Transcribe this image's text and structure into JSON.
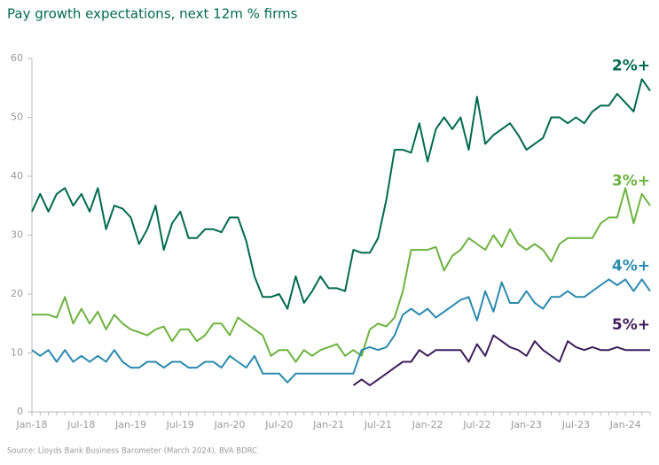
{
  "chart_data": {
    "type": "line",
    "title": "Pay growth expectations, next 12m % firms",
    "source": "Source: Lloyds Bank Business Barometer (March 2024), BVA BDRC",
    "categories": [
      "Jan-18",
      null,
      null,
      null,
      null,
      null,
      "Jul-18",
      null,
      null,
      null,
      null,
      null,
      "Jan-19",
      null,
      null,
      null,
      null,
      null,
      "Jul-19",
      null,
      null,
      null,
      null,
      null,
      "Jan-20",
      null,
      null,
      null,
      null,
      null,
      "Jul-20",
      null,
      null,
      null,
      null,
      null,
      "Jan-21",
      null,
      null,
      null,
      null,
      null,
      "Jul-21",
      null,
      null,
      null,
      null,
      null,
      "Jan-22",
      null,
      null,
      null,
      null,
      null,
      "Jul-22",
      null,
      null,
      null,
      null,
      null,
      "Jan-23",
      null,
      null,
      null,
      null,
      null,
      "Jul-23",
      null,
      null,
      null,
      null,
      null,
      "Jan-24",
      null,
      null,
      null
    ],
    "series": [
      {
        "name": "2%+",
        "color": "#006a4d",
        "values": [
          34,
          37,
          34,
          37,
          38,
          35,
          37,
          34,
          38,
          31,
          35,
          34.5,
          33,
          28.5,
          31,
          35,
          27.5,
          32,
          34,
          29.5,
          29.5,
          31,
          31,
          30.5,
          33,
          33,
          29,
          23,
          19.5,
          19.5,
          20,
          17.5,
          23,
          18.5,
          20.5,
          23,
          21,
          21,
          20.5,
          27.5,
          27,
          27,
          29.5,
          36,
          44.5,
          44.5,
          44,
          49,
          42.5,
          48,
          50,
          48,
          50,
          44.5,
          53.5,
          45.5,
          47,
          48,
          49,
          47,
          44.5,
          45.5,
          46.5,
          50,
          50,
          49,
          50,
          49,
          51,
          52,
          52,
          54,
          52.5,
          51,
          56.5,
          54.5
        ]
      },
      {
        "name": "3%+",
        "color": "#6cb33f",
        "values": [
          16.5,
          16.5,
          16.5,
          16,
          19.5,
          15,
          17.5,
          15,
          17,
          14,
          16.5,
          15,
          14,
          13.5,
          13,
          14,
          14.5,
          12,
          14,
          14,
          12,
          13,
          15,
          15,
          13,
          16,
          15,
          14,
          13,
          9.5,
          10.5,
          10.5,
          8.5,
          10.5,
          9.5,
          10.5,
          11,
          11.5,
          9.5,
          10.5,
          9.5,
          14,
          15,
          14.5,
          16,
          20.5,
          27.5,
          27.5,
          27.5,
          28,
          24,
          26.5,
          27.5,
          29.5,
          28.5,
          27.5,
          30,
          28,
          31,
          28.5,
          27.5,
          28.5,
          27.5,
          25.5,
          28.5,
          29.5,
          29.5,
          29.5,
          29.5,
          32,
          33,
          33,
          38,
          32,
          37,
          35
        ]
      },
      {
        "name": "4%+",
        "color": "#2a8aaf",
        "values": [
          10.5,
          9.5,
          10.5,
          8.5,
          10.5,
          8.5,
          9.5,
          8.5,
          9.5,
          8.5,
          10.5,
          8.5,
          7.5,
          7.5,
          8.5,
          8.5,
          7.5,
          8.5,
          8.5,
          7.5,
          7.5,
          8.5,
          8.5,
          7.5,
          9.5,
          8.5,
          7.5,
          9.5,
          6.5,
          6.5,
          6.5,
          5,
          6.5,
          6.5,
          6.5,
          6.5,
          6.5,
          6.5,
          6.5,
          6.5,
          10.5,
          11,
          10.5,
          11,
          13,
          16.5,
          17.5,
          16.5,
          17.5,
          16,
          17,
          18,
          19,
          19.5,
          15.5,
          20.5,
          17,
          22,
          18.5,
          18.5,
          20.5,
          18.5,
          17.5,
          19.5,
          19.5,
          20.5,
          19.5,
          19.5,
          20.5,
          21.5,
          22.5,
          21.5,
          22.5,
          20.5,
          22.5,
          20.5
        ]
      },
      {
        "name": "5%+",
        "color": "#3d1e5a",
        "values": [
          null,
          null,
          null,
          null,
          null,
          null,
          null,
          null,
          null,
          null,
          null,
          null,
          null,
          null,
          null,
          null,
          null,
          null,
          null,
          null,
          null,
          null,
          null,
          null,
          null,
          null,
          null,
          null,
          null,
          null,
          null,
          null,
          null,
          null,
          null,
          null,
          null,
          null,
          null,
          4.5,
          5.5,
          4.5,
          5.5,
          6.5,
          7.5,
          8.5,
          8.5,
          10.5,
          9.5,
          10.5,
          10.5,
          10.5,
          10.5,
          8.5,
          11.5,
          9.5,
          13,
          12,
          11,
          10.5,
          9.5,
          12,
          10.5,
          9.5,
          8.5,
          12,
          11,
          10.5,
          11,
          10.5,
          10.5,
          11,
          10.5,
          10.5,
          10.5,
          10.5
        ]
      }
    ],
    "ylim": [
      0,
      60
    ],
    "yticks": [
      0,
      10,
      20,
      30,
      40,
      50,
      60
    ],
    "grid": false
  }
}
